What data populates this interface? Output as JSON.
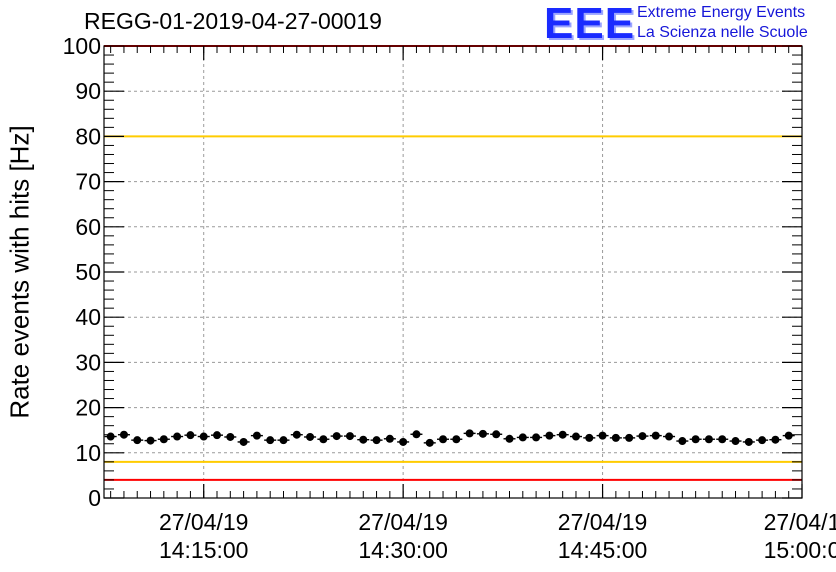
{
  "logo": {
    "mark": "EEE",
    "line1": "Extreme Energy Events",
    "line2": "La Scienza nelle Scuole"
  },
  "chart_data": {
    "type": "scatter",
    "title": "REGG-01-2019-04-27-00019",
    "ylabel": "Rate events with hits [Hz]",
    "xlabel": "",
    "ylim": [
      0,
      100
    ],
    "yticks": [
      0,
      10,
      20,
      30,
      40,
      50,
      60,
      70,
      80,
      90,
      100
    ],
    "xlim": [
      "27/04/19 14:07:30",
      "27/04/19 15:00:00"
    ],
    "xticks": [
      {
        "date": "27/04/19",
        "time": "14:15:00"
      },
      {
        "date": "27/04/19",
        "time": "14:30:00"
      },
      {
        "date": "27/04/19",
        "time": "14:45:00"
      },
      {
        "date": "27/04/1",
        "time": "15:00:0"
      }
    ],
    "grid": true,
    "reference_lines": [
      {
        "y": 100,
        "color": "#ff0000"
      },
      {
        "y": 80,
        "color": "#ffcc00"
      },
      {
        "y": 8,
        "color": "#ffcc00"
      },
      {
        "y": 4,
        "color": "#ff0000"
      }
    ],
    "marker_color": "#000000",
    "series": [
      {
        "x": [
          "14:08:00",
          "14:09:00",
          "14:10:00",
          "14:11:00",
          "14:12:00",
          "14:13:00",
          "14:14:00",
          "14:15:00",
          "14:16:00",
          "14:17:00",
          "14:18:00",
          "14:19:00",
          "14:20:00",
          "14:21:00",
          "14:22:00",
          "14:23:00",
          "14:24:00",
          "14:25:00",
          "14:26:00",
          "14:27:00",
          "14:28:00",
          "14:29:00",
          "14:30:00",
          "14:31:00",
          "14:32:00",
          "14:33:00",
          "14:34:00",
          "14:35:00",
          "14:36:00",
          "14:37:00",
          "14:38:00",
          "14:39:00",
          "14:40:00",
          "14:41:00",
          "14:42:00",
          "14:43:00",
          "14:44:00",
          "14:45:00",
          "14:46:00",
          "14:47:00",
          "14:48:00",
          "14:49:00",
          "14:50:00",
          "14:51:00",
          "14:52:00",
          "14:53:00",
          "14:54:00",
          "14:55:00",
          "14:56:00",
          "14:57:00",
          "14:58:00",
          "14:59:00"
        ],
        "values": [
          13.6,
          14.0,
          12.8,
          12.7,
          13.0,
          13.6,
          13.9,
          13.6,
          13.9,
          13.5,
          12.4,
          13.8,
          12.8,
          12.8,
          14.0,
          13.5,
          13.0,
          13.7,
          13.7,
          12.9,
          12.8,
          13.1,
          12.4,
          14.1,
          12.2,
          13.0,
          13.0,
          14.3,
          14.2,
          14.1,
          13.1,
          13.4,
          13.4,
          13.8,
          14.0,
          13.6,
          13.3,
          13.8,
          13.3,
          13.3,
          13.7,
          13.8,
          13.6,
          12.6,
          13.0,
          13.0,
          13.0,
          12.6,
          12.4,
          12.8,
          12.9,
          13.8
        ]
      }
    ],
    "error": 0.8
  }
}
